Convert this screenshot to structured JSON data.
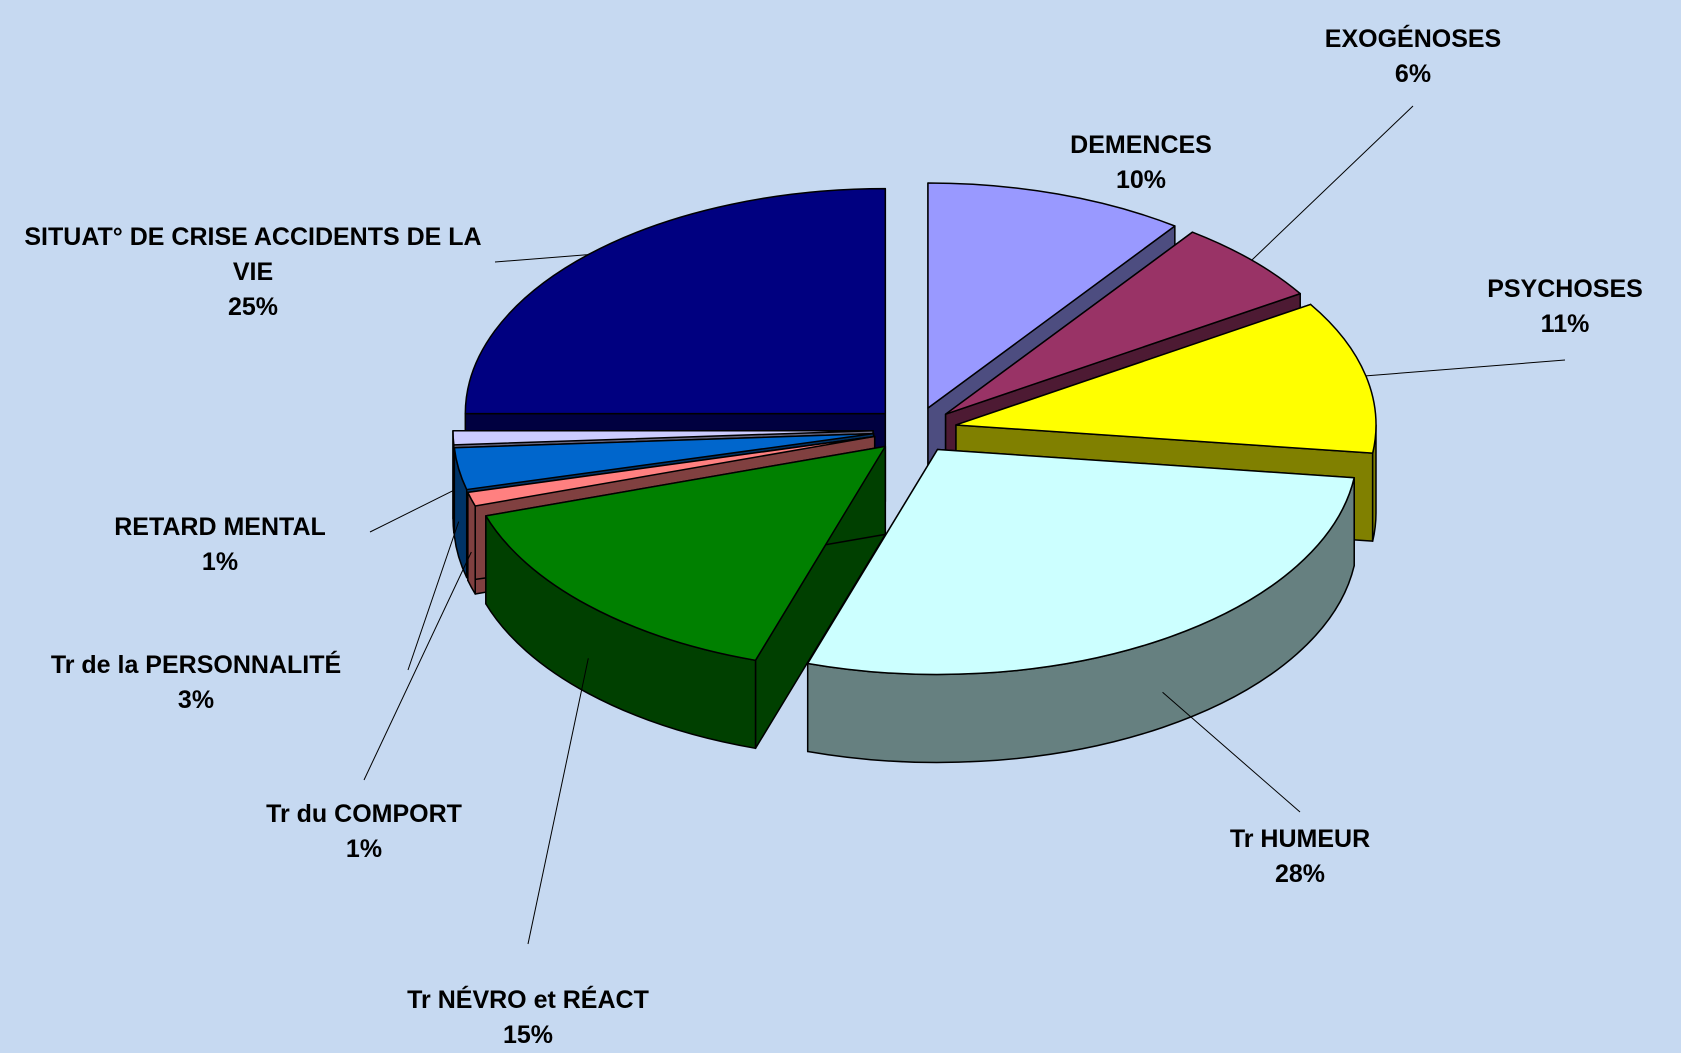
{
  "chart_data": {
    "type": "pie",
    "categories": [
      "DEMENCES",
      "EXOGÉNOSES",
      "PSYCHOSES",
      "Tr HUMEUR",
      "Tr NÉVRO et RÉACT",
      "Tr du COMPORT",
      "Tr de la PERSONNALITÉ",
      "RETARD MENTAL",
      "SITUAT° DE CRISE ACCIDENTS DE LA VIE"
    ],
    "values": [
      10,
      6,
      11,
      28,
      15,
      1,
      3,
      1,
      25
    ],
    "value_labels": [
      "10%",
      "6%",
      "11%",
      "28%",
      "15%",
      "1%",
      "3%",
      "1%",
      "25%"
    ],
    "colors": [
      "#9999ff",
      "#993366",
      "#ffff00",
      "#ccffff",
      "#008000",
      "#ff8080",
      "#0066cc",
      "#ccccff",
      "#000080"
    ]
  }
}
